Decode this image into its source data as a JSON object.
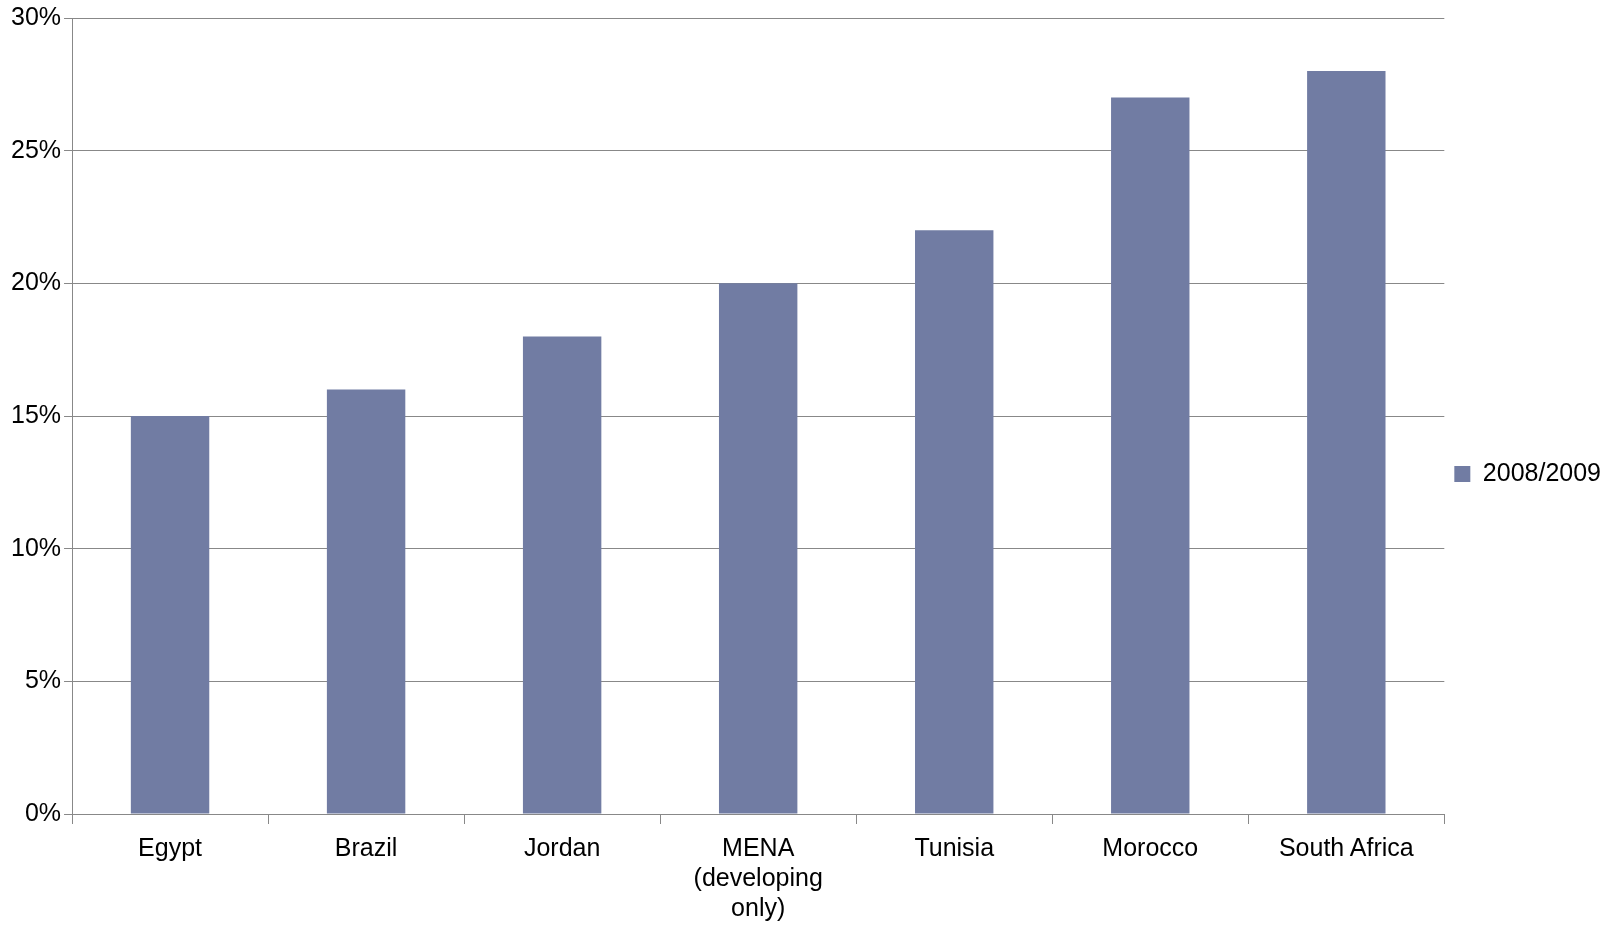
{
  "chart_data": {
    "type": "bar",
    "categories": [
      "Egypt",
      "Brazil",
      "Jordan",
      "MENA (developing only)",
      "Tunisia",
      "Morocco",
      "South Africa"
    ],
    "series": [
      {
        "name": "2008/2009",
        "color": "#717ca3",
        "values": [
          15,
          16,
          18,
          20,
          22,
          27,
          28
        ]
      }
    ],
    "ylim": [
      0,
      30
    ],
    "yticks": [
      {
        "value": 0,
        "label": "0%"
      },
      {
        "value": 5,
        "label": "5%"
      },
      {
        "value": 10,
        "label": "10%"
      },
      {
        "value": 15,
        "label": "15%"
      },
      {
        "value": 20,
        "label": "20%"
      },
      {
        "value": 25,
        "label": "25%"
      },
      {
        "value": 30,
        "label": "30%"
      }
    ],
    "grid": "y",
    "legend": "right"
  }
}
